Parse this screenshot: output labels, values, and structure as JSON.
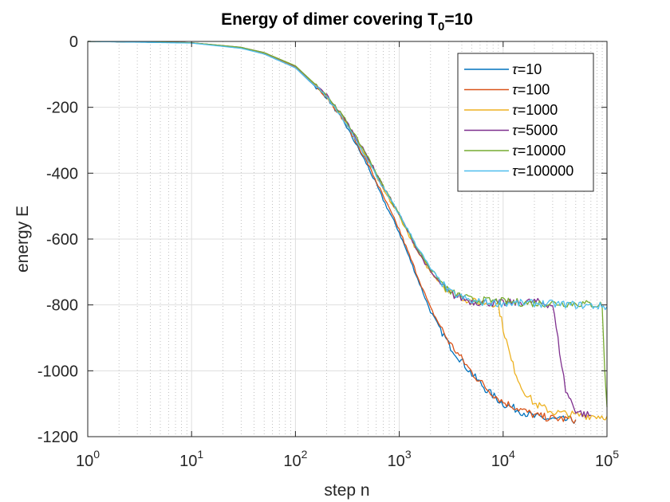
{
  "chart_data": {
    "type": "line",
    "title_main": "Energy of dimer covering T",
    "title_sub": "0",
    "title_tail": "=10",
    "xlabel": "step n",
    "ylabel": "energy E",
    "x_scale": "log",
    "xlim": [
      1,
      100000
    ],
    "ylim": [
      -1200,
      0
    ],
    "x_ticks": [
      {
        "base": "10",
        "exp": "0"
      },
      {
        "base": "10",
        "exp": "1"
      },
      {
        "base": "10",
        "exp": "2"
      },
      {
        "base": "10",
        "exp": "3"
      },
      {
        "base": "10",
        "exp": "4"
      },
      {
        "base": "10",
        "exp": "5"
      }
    ],
    "y_ticks": [
      "0",
      "-200",
      "-400",
      "-600",
      "-800",
      "-1000",
      "-1200"
    ],
    "grid": true,
    "minor_grid_x": true,
    "legend_position": "top-right",
    "legend_symbol": "τ",
    "series": [
      {
        "name": "=10",
        "color": "#0072BD",
        "points": [
          [
            1,
            0
          ],
          [
            10,
            -4
          ],
          [
            30,
            -20
          ],
          [
            50,
            -38
          ],
          [
            100,
            -80
          ],
          [
            200,
            -170
          ],
          [
            300,
            -250
          ],
          [
            500,
            -380
          ],
          [
            700,
            -480
          ],
          [
            1000,
            -580
          ],
          [
            1500,
            -720
          ],
          [
            2000,
            -820
          ],
          [
            3000,
            -920
          ],
          [
            5000,
            -1010
          ],
          [
            7000,
            -1060
          ],
          [
            10000,
            -1100
          ],
          [
            20000,
            -1140
          ],
          [
            30000,
            -1148
          ],
          [
            50000,
            -1150
          ]
        ]
      },
      {
        "name": "=100",
        "color": "#D95319",
        "points": [
          [
            1,
            0
          ],
          [
            10,
            -4
          ],
          [
            30,
            -20
          ],
          [
            50,
            -37
          ],
          [
            100,
            -78
          ],
          [
            200,
            -168
          ],
          [
            300,
            -245
          ],
          [
            500,
            -372
          ],
          [
            700,
            -470
          ],
          [
            1000,
            -572
          ],
          [
            1500,
            -712
          ],
          [
            2000,
            -810
          ],
          [
            3000,
            -912
          ],
          [
            5000,
            -1005
          ],
          [
            7000,
            -1055
          ],
          [
            10000,
            -1095
          ],
          [
            20000,
            -1135
          ],
          [
            30000,
            -1145
          ],
          [
            50000,
            -1148
          ]
        ]
      },
      {
        "name": "=1000",
        "color": "#EDB120",
        "points": [
          [
            1,
            0
          ],
          [
            10,
            -4
          ],
          [
            30,
            -19
          ],
          [
            50,
            -35
          ],
          [
            100,
            -76
          ],
          [
            200,
            -165
          ],
          [
            300,
            -240
          ],
          [
            500,
            -360
          ],
          [
            700,
            -450
          ],
          [
            1000,
            -530
          ],
          [
            1500,
            -640
          ],
          [
            2000,
            -700
          ],
          [
            3000,
            -760
          ],
          [
            5000,
            -790
          ],
          [
            8000,
            -795
          ],
          [
            9000,
            -800
          ],
          [
            10000,
            -870
          ],
          [
            12000,
            -970
          ],
          [
            15000,
            -1050
          ],
          [
            20000,
            -1100
          ],
          [
            30000,
            -1125
          ],
          [
            50000,
            -1135
          ],
          [
            100000,
            -1138
          ]
        ]
      },
      {
        "name": "=5000",
        "color": "#7E2F8E",
        "points": [
          [
            1,
            0
          ],
          [
            10,
            -4
          ],
          [
            30,
            -18
          ],
          [
            50,
            -34
          ],
          [
            100,
            -75
          ],
          [
            200,
            -163
          ],
          [
            300,
            -236
          ],
          [
            500,
            -352
          ],
          [
            700,
            -440
          ],
          [
            1000,
            -525
          ],
          [
            1500,
            -635
          ],
          [
            2000,
            -700
          ],
          [
            3000,
            -765
          ],
          [
            5000,
            -790
          ],
          [
            10000,
            -795
          ],
          [
            20000,
            -790
          ],
          [
            30000,
            -800
          ],
          [
            35000,
            -940
          ],
          [
            40000,
            -1060
          ],
          [
            50000,
            -1120
          ],
          [
            60000,
            -1132
          ],
          [
            70000,
            -1135
          ]
        ]
      },
      {
        "name": "=10000",
        "color": "#77AC30",
        "points": [
          [
            1,
            0
          ],
          [
            10,
            -4
          ],
          [
            30,
            -18
          ],
          [
            50,
            -34
          ],
          [
            100,
            -74
          ],
          [
            200,
            -163
          ],
          [
            300,
            -236
          ],
          [
            500,
            -352
          ],
          [
            700,
            -440
          ],
          [
            1000,
            -525
          ],
          [
            1500,
            -630
          ],
          [
            2000,
            -690
          ],
          [
            3000,
            -760
          ],
          [
            5000,
            -785
          ],
          [
            10000,
            -790
          ],
          [
            20000,
            -795
          ],
          [
            50000,
            -795
          ],
          [
            90000,
            -800
          ],
          [
            95000,
            -1000
          ],
          [
            100000,
            -1110
          ]
        ]
      },
      {
        "name": "=100000",
        "color": "#4DBEEE",
        "points": [
          [
            1,
            0
          ],
          [
            10,
            -5
          ],
          [
            30,
            -21
          ],
          [
            50,
            -38
          ],
          [
            100,
            -80
          ],
          [
            200,
            -168
          ],
          [
            300,
            -245
          ],
          [
            500,
            -362
          ],
          [
            700,
            -445
          ],
          [
            1000,
            -525
          ],
          [
            1500,
            -625
          ],
          [
            2000,
            -690
          ],
          [
            3000,
            -760
          ],
          [
            5000,
            -790
          ],
          [
            10000,
            -795
          ],
          [
            20000,
            -795
          ],
          [
            50000,
            -800
          ],
          [
            100000,
            -805
          ]
        ]
      }
    ]
  }
}
